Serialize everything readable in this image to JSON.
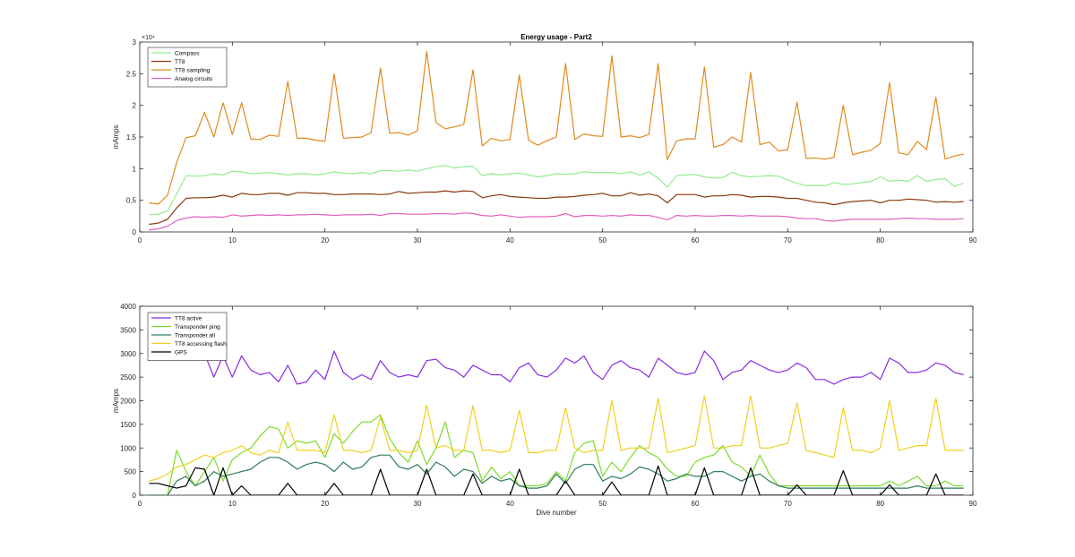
{
  "chart_data": [
    {
      "type": "line",
      "title": "Energy usage - Part2",
      "xlabel": "",
      "ylabel": "mAmps",
      "xlim": [
        0,
        90
      ],
      "ylim": [
        0,
        30000
      ],
      "exponent_label": "×10⁴",
      "x_ticks": [
        0,
        10,
        20,
        30,
        40,
        50,
        60,
        70,
        80,
        90
      ],
      "x_tick_labels": [
        "0",
        "10",
        "20",
        "30",
        "40",
        "50",
        "60",
        "70",
        "80",
        "90"
      ],
      "y_ticks": [
        0,
        5000,
        10000,
        15000,
        20000,
        25000,
        30000
      ],
      "y_tick_labels": [
        "0",
        "0.5",
        "1",
        "1.5",
        "2",
        "2.5",
        "3"
      ],
      "grid": false,
      "legend_position": "top-left",
      "series": [
        {
          "name": "Compass",
          "color": "#90ee90",
          "x_start": 1,
          "values": [
            2700,
            2800,
            3300,
            6000,
            8900,
            8800,
            8900,
            9200,
            9000,
            9600,
            9500,
            9200,
            9300,
            9400,
            9200,
            9000,
            9200,
            9200,
            9000,
            9200,
            9500,
            9300,
            9200,
            9400,
            9200,
            9700,
            9700,
            9600,
            9800,
            9600,
            10000,
            10300,
            10500,
            10100,
            10300,
            10400,
            8900,
            9200,
            9000,
            9200,
            9300,
            9000,
            8700,
            8900,
            9200,
            9100,
            9200,
            9500,
            9400,
            9400,
            9400,
            9200,
            9500,
            9000,
            9500,
            8500,
            7100,
            8900,
            9000,
            9100,
            8700,
            8500,
            8600,
            9400,
            8900,
            8700,
            8800,
            8900,
            8800,
            8200,
            7700,
            7300,
            7300,
            7300,
            7800,
            7500,
            7600,
            7800,
            8000,
            8700,
            8000,
            8200,
            8000,
            8900,
            8000,
            8300,
            8400,
            7200,
            7700
          ]
        },
        {
          "name": "TT8",
          "color": "#8b3a0f",
          "x_start": 1,
          "values": [
            1200,
            1400,
            2000,
            3800,
            5300,
            5400,
            5400,
            5500,
            5800,
            5500,
            6100,
            5900,
            5900,
            6100,
            6100,
            5800,
            6200,
            6200,
            6100,
            6100,
            5900,
            5900,
            6000,
            6000,
            6000,
            5900,
            6000,
            6400,
            6100,
            6200,
            6300,
            6300,
            6500,
            6300,
            6500,
            6400,
            5400,
            5700,
            5900,
            5600,
            5500,
            5400,
            5300,
            5300,
            5500,
            5500,
            5600,
            5800,
            5900,
            6100,
            5700,
            5700,
            6200,
            5800,
            6000,
            5700,
            4600,
            5900,
            5900,
            5900,
            5500,
            5700,
            5700,
            5900,
            5800,
            5500,
            5600,
            5600,
            5500,
            5300,
            5300,
            5000,
            4700,
            4600,
            4300,
            4600,
            4800,
            4900,
            5000,
            4600,
            5000,
            5000,
            5200,
            5100,
            5000,
            4700,
            4800,
            4700,
            4800
          ]
        },
        {
          "name": "TT8 sampling",
          "color": "#e08a1e",
          "x_start": 1,
          "values": [
            4600,
            4400,
            5800,
            11000,
            14900,
            15200,
            18900,
            15000,
            20400,
            15400,
            20400,
            14700,
            14600,
            15300,
            15100,
            23800,
            14800,
            14800,
            14500,
            14300,
            25000,
            14800,
            14900,
            15000,
            15700,
            25900,
            15600,
            15700,
            15300,
            16000,
            28500,
            17300,
            16300,
            16600,
            17000,
            25600,
            13600,
            14800,
            14400,
            14600,
            24800,
            14500,
            13700,
            14400,
            15000,
            26600,
            14600,
            15500,
            15200,
            15100,
            27800,
            15000,
            15200,
            14900,
            15400,
            26600,
            11400,
            14400,
            14700,
            14700,
            26100,
            13400,
            13800,
            15000,
            14200,
            25200,
            13800,
            14200,
            12800,
            13000,
            20500,
            11600,
            11700,
            11500,
            11800,
            20000,
            12200,
            12600,
            12900,
            14000,
            23600,
            12500,
            12200,
            14300,
            13000,
            21300,
            11500,
            12000,
            12300
          ]
        },
        {
          "name": "Analog circuits",
          "color": "#e060c0",
          "x_start": 1,
          "values": [
            300,
            500,
            900,
            1800,
            2200,
            2400,
            2300,
            2400,
            2300,
            2700,
            2500,
            2600,
            2700,
            2600,
            2700,
            2600,
            2700,
            2700,
            2800,
            2700,
            2600,
            2700,
            2700,
            2700,
            2800,
            2600,
            2900,
            2900,
            2800,
            2800,
            2800,
            2900,
            2900,
            2800,
            3000,
            2900,
            2600,
            2500,
            2700,
            2500,
            2300,
            2400,
            2400,
            2400,
            2500,
            2900,
            2400,
            2600,
            2600,
            2500,
            2600,
            2500,
            2700,
            2600,
            2600,
            2300,
            1900,
            2600,
            2500,
            2600,
            2500,
            2500,
            2600,
            2600,
            2500,
            2600,
            2500,
            2500,
            2500,
            2400,
            2200,
            2100,
            2100,
            1800,
            1700,
            1900,
            2000,
            2000,
            2000,
            2000,
            2000,
            2100,
            2200,
            2100,
            2100,
            2000,
            2000,
            2000,
            2100
          ]
        }
      ]
    },
    {
      "type": "line",
      "title": "",
      "xlabel": "Dive number",
      "ylabel": "mAmps",
      "xlim": [
        0,
        90
      ],
      "ylim": [
        0,
        4000
      ],
      "x_ticks": [
        0,
        10,
        20,
        30,
        40,
        50,
        60,
        70,
        80,
        90
      ],
      "x_tick_labels": [
        "0",
        "10",
        "20",
        "30",
        "40",
        "50",
        "60",
        "70",
        "80",
        "90"
      ],
      "y_ticks": [
        0,
        500,
        1000,
        1500,
        2000,
        2500,
        3000,
        3500,
        4000
      ],
      "y_tick_labels": [
        "0",
        "500",
        "1000",
        "1500",
        "2000",
        "2500",
        "3000",
        "3500",
        "4000"
      ],
      "grid": false,
      "legend_position": "top-left",
      "series": [
        {
          "name": "TT8 active",
          "color": "#8a2be2",
          "x_start": 6,
          "values": [
            3200,
            3000,
            2500,
            2950,
            2500,
            2950,
            2650,
            2550,
            2600,
            2400,
            2750,
            2350,
            2400,
            2650,
            2450,
            3050,
            2600,
            2450,
            2550,
            2450,
            2850,
            2600,
            2500,
            2550,
            2500,
            2850,
            2880,
            2700,
            2650,
            2500,
            2750,
            2650,
            2550,
            2550,
            2400,
            2700,
            2800,
            2550,
            2500,
            2650,
            2900,
            2800,
            2950,
            2600,
            2450,
            2750,
            2850,
            2700,
            2650,
            2500,
            2900,
            2750,
            2600,
            2550,
            2600,
            3050,
            2850,
            2450,
            2600,
            2650,
            2850,
            2750,
            2650,
            2600,
            2650,
            2800,
            2700,
            2450,
            2450,
            2350,
            2450,
            2500,
            2500,
            2600,
            2450,
            2900,
            2800,
            2600,
            2600,
            2650,
            2800,
            2750,
            2600,
            2550
          ]
        },
        {
          "name": "Transponder ping",
          "color": "#7cdc28",
          "x_start": 1,
          "values": [
            0,
            0,
            0,
            950,
            500,
            200,
            500,
            800,
            300,
            750,
            900,
            1000,
            1250,
            1450,
            1400,
            1000,
            1150,
            1100,
            1150,
            800,
            1300,
            1100,
            1350,
            1550,
            1550,
            1700,
            1200,
            900,
            700,
            1150,
            650,
            1000,
            1550,
            800,
            950,
            900,
            300,
            600,
            350,
            500,
            200,
            200,
            200,
            250,
            500,
            300,
            900,
            1100,
            1150,
            400,
            700,
            500,
            800,
            1050,
            900,
            800,
            550,
            400,
            400,
            700,
            800,
            850,
            1050,
            700,
            600,
            400,
            850,
            450,
            200,
            200,
            200,
            200,
            200,
            200,
            200,
            200,
            200,
            200,
            200,
            200,
            300,
            200,
            300,
            400,
            200,
            200,
            300,
            200,
            200
          ]
        },
        {
          "name": "Transponder all",
          "color": "#2e7d58",
          "x_start": 1,
          "values": [
            0,
            0,
            0,
            300,
            400,
            200,
            300,
            500,
            400,
            450,
            500,
            550,
            700,
            800,
            800,
            700,
            550,
            650,
            700,
            650,
            500,
            700,
            550,
            600,
            800,
            850,
            850,
            600,
            550,
            650,
            450,
            700,
            600,
            400,
            550,
            500,
            250,
            400,
            300,
            350,
            200,
            150,
            150,
            200,
            450,
            250,
            550,
            650,
            650,
            300,
            400,
            350,
            450,
            600,
            550,
            450,
            300,
            350,
            450,
            400,
            400,
            500,
            500,
            400,
            300,
            400,
            450,
            300,
            200,
            150,
            150,
            150,
            150,
            150,
            150,
            150,
            150,
            150,
            150,
            150,
            150,
            150,
            150,
            200,
            150,
            150,
            150,
            150,
            150
          ]
        },
        {
          "name": "TT8 accessing flash",
          "color": "#f0d020",
          "x_start": 1,
          "values": [
            300,
            350,
            450,
            600,
            650,
            750,
            850,
            800,
            900,
            950,
            1050,
            900,
            850,
            950,
            900,
            1550,
            950,
            950,
            950,
            900,
            1700,
            950,
            950,
            900,
            950,
            1650,
            950,
            950,
            900,
            950,
            1900,
            1000,
            1050,
            950,
            950,
            1900,
            950,
            950,
            900,
            950,
            1800,
            900,
            900,
            950,
            950,
            1850,
            1000,
            900,
            950,
            950,
            2000,
            950,
            1000,
            1000,
            1000,
            2050,
            900,
            950,
            1000,
            1050,
            2100,
            1000,
            1000,
            1050,
            1050,
            2100,
            1000,
            1000,
            1050,
            1100,
            1950,
            950,
            900,
            850,
            800,
            1850,
            950,
            950,
            900,
            1000,
            2000,
            950,
            1000,
            1050,
            1050,
            2050,
            950,
            950,
            950
          ]
        },
        {
          "name": "GPS",
          "color": "#000000",
          "x_start": 1,
          "values": [
            250,
            250,
            200,
            150,
            200,
            580,
            550,
            0,
            580,
            0,
            200,
            0,
            0,
            0,
            0,
            250,
            0,
            0,
            0,
            0,
            250,
            0,
            0,
            0,
            0,
            550,
            0,
            0,
            0,
            0,
            550,
            0,
            0,
            0,
            0,
            450,
            0,
            0,
            0,
            0,
            550,
            0,
            0,
            0,
            0,
            300,
            0,
            0,
            0,
            0,
            280,
            0,
            0,
            0,
            0,
            620,
            0,
            0,
            0,
            0,
            580,
            0,
            0,
            0,
            0,
            580,
            0,
            0,
            0,
            0,
            220,
            0,
            0,
            0,
            0,
            520,
            0,
            0,
            0,
            0,
            220,
            0,
            0,
            0,
            0,
            450,
            0,
            0,
            0
          ]
        }
      ]
    }
  ]
}
